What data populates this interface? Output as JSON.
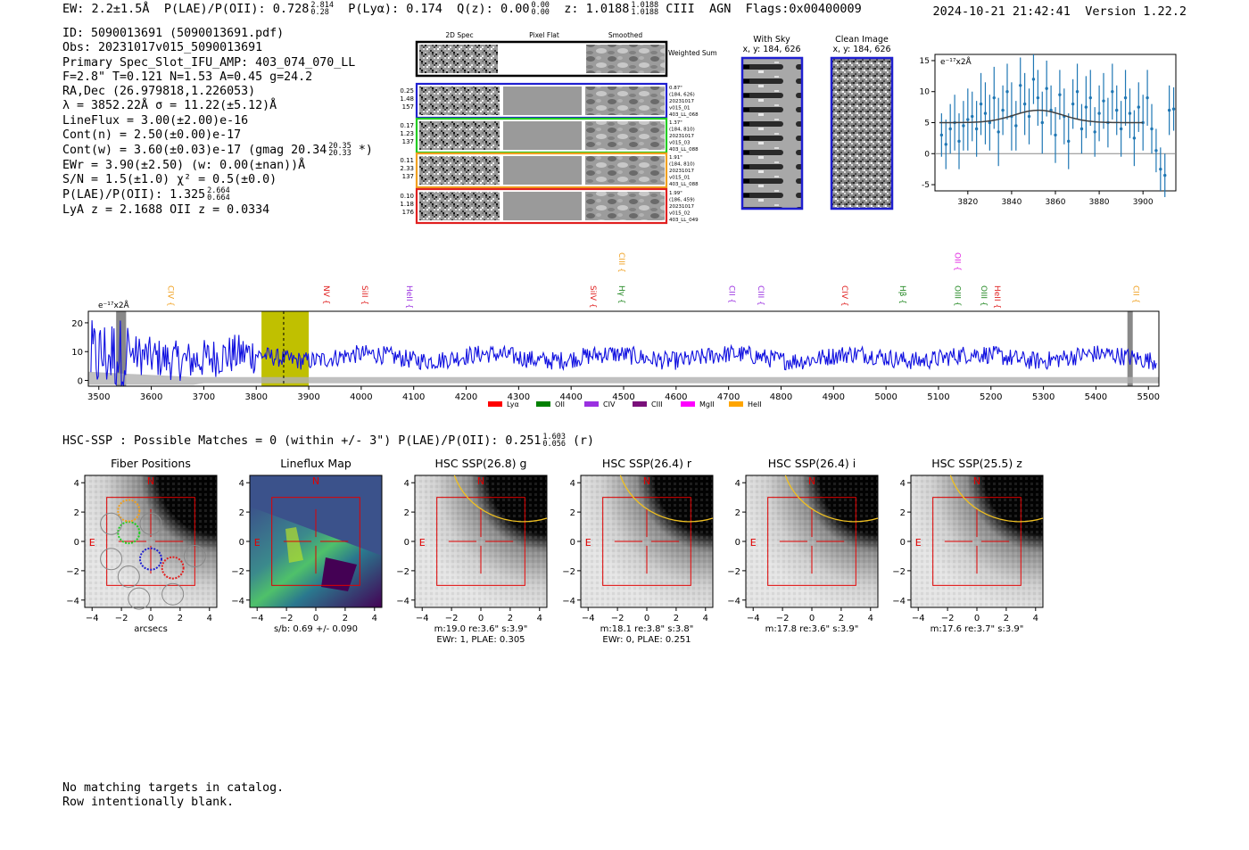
{
  "header": {
    "ew": "EW: 2.2±1.5Å",
    "plae_label": "P(LAE)/P(OII): 0.728",
    "plae_hi": "2.814",
    "plae_lo": "0.28",
    "plya": "P(Lyα): 0.174",
    "qz_label": "Q(z): 0.00",
    "qz_hi": "0.00",
    "qz_lo": "0.00",
    "z_label": "z: 1.0188",
    "z_hi": "1.0188",
    "z_lo": "1.0188",
    "line_id": "CIII",
    "agn": "AGN",
    "flags": "Flags:0x00400009",
    "timestamp": "2024-10-21 21:42:41",
    "version": "Version 1.22.2"
  },
  "info": {
    "id": "ID: 5090013691 (5090013691.pdf)",
    "obs": "Obs: 20231017v015_5090013691",
    "primary": "Primary Spec_Slot_IFU_AMP: 403_074_070_LL",
    "params": "F=2.8\"  T=0.121  N=1.53  A=0.45  g=24.2",
    "radec": "RA,Dec (26.979818,1.226053)",
    "lambda": "λ = 3852.22Å  σ = 11.22(±5.12)Å",
    "lineflux": "LineFlux = 3.00(±2.00)e-16",
    "contn": "Cont(n) = 2.50(±0.00)e-17",
    "contw_label": "Cont(w) = 3.60(±0.03)e-17 (gmag 20.34",
    "contw_hi": "20.35",
    "contw_lo": "20.33",
    "contw_end": "*)",
    "ewr": "EWr = 3.90(±2.50) (w: 0.00(±nan))Å",
    "sn": "S/N = 1.5(±1.0)  χ² = 0.5(±0.0)",
    "plae_label": "P(LAE)/P(OII): 1.325",
    "plae_hi": "2.664",
    "plae_lo": "0.664",
    "lya_z": "LyA z = 2.1688  OII z = 0.0334"
  },
  "spec2d": {
    "col_headers": [
      "2D Spec",
      "Pixel Flat",
      "Smoothed"
    ],
    "weighted_label": "Weighted Sum",
    "rows": [
      {
        "left": [
          "0.25",
          "1.48",
          "157"
        ],
        "right": [
          "0.87\"",
          "(184, 626)",
          "20231017",
          "v015_01",
          "403_LL_068"
        ],
        "color": "#1f1fd0"
      },
      {
        "left": [
          "0.17",
          "1.23",
          "137"
        ],
        "right": [
          "1.37\"",
          "(184, 810)",
          "20231017",
          "v015_03",
          "403_LL_088"
        ],
        "color": "#22cc22"
      },
      {
        "left": [
          "0.11",
          "2.33",
          "137"
        ],
        "right": [
          "1.91\"",
          "(184, 810)",
          "20231017",
          "v015_01",
          "403_LL_088"
        ],
        "color": "#f0a020"
      },
      {
        "left": [
          "0.10",
          "1.18",
          "176"
        ],
        "right": [
          "1.99\"",
          "(186, 459)",
          "20231017",
          "v015_02",
          "403_LL_049"
        ],
        "color": "#e02020"
      }
    ]
  },
  "sky_panels": {
    "with_sky_title": "With Sky",
    "with_sky_coords": "x, y: 184, 626",
    "clean_title": "Clean Image",
    "clean_coords": "x, y: 184, 626"
  },
  "zoom_chart": {
    "type": "scatter",
    "ylabel": "e⁻¹⁷x2Å",
    "x_ticks": [
      3820,
      3840,
      3860,
      3880,
      3900
    ],
    "y_ticks": [
      15,
      10,
      5,
      0,
      -5
    ],
    "xlim": [
      3805,
      3915
    ],
    "ylim": [
      -6,
      16
    ],
    "points": [
      [
        3808,
        3.0,
        3.5
      ],
      [
        3810,
        1.5,
        4.0
      ],
      [
        3812,
        4.0,
        4.0
      ],
      [
        3814,
        5.0,
        4.5
      ],
      [
        3816,
        2.0,
        4.5
      ],
      [
        3818,
        4.5,
        4.0
      ],
      [
        3820,
        5.5,
        5.0
      ],
      [
        3822,
        6.0,
        4.0
      ],
      [
        3824,
        4.0,
        4.5
      ],
      [
        3826,
        8.0,
        5.0
      ],
      [
        3828,
        6.5,
        5.0
      ],
      [
        3830,
        5.0,
        4.5
      ],
      [
        3832,
        9.0,
        5.0
      ],
      [
        3834,
        3.5,
        5.5
      ],
      [
        3836,
        7.0,
        4.0
      ],
      [
        3838,
        10.0,
        4.5
      ],
      [
        3840,
        6.0,
        5.5
      ],
      [
        3842,
        4.5,
        4.0
      ],
      [
        3844,
        11.0,
        4.5
      ],
      [
        3846,
        8.0,
        5.0
      ],
      [
        3848,
        6.0,
        4.5
      ],
      [
        3850,
        12.0,
        4.0
      ],
      [
        3852,
        9.0,
        4.5
      ],
      [
        3854,
        5.0,
        5.0
      ],
      [
        3856,
        10.5,
        4.5
      ],
      [
        3858,
        7.0,
        4.0
      ],
      [
        3860,
        3.0,
        4.5
      ],
      [
        3862,
        9.5,
        4.0
      ],
      [
        3864,
        6.0,
        4.5
      ],
      [
        3866,
        2.0,
        4.5
      ],
      [
        3868,
        8.0,
        4.0
      ],
      [
        3870,
        10.0,
        4.5
      ],
      [
        3872,
        4.0,
        4.0
      ],
      [
        3874,
        7.5,
        5.0
      ],
      [
        3876,
        9.0,
        4.5
      ],
      [
        3878,
        3.5,
        4.0
      ],
      [
        3880,
        6.5,
        4.5
      ],
      [
        3882,
        8.5,
        4.5
      ],
      [
        3884,
        5.0,
        4.0
      ],
      [
        3886,
        10.0,
        4.5
      ],
      [
        3888,
        7.0,
        4.0
      ],
      [
        3890,
        4.0,
        4.5
      ],
      [
        3892,
        9.0,
        4.5
      ],
      [
        3894,
        6.5,
        4.0
      ],
      [
        3896,
        2.5,
        4.5
      ],
      [
        3898,
        7.5,
        4.0
      ],
      [
        3900,
        5.0,
        4.5
      ],
      [
        3902,
        9.0,
        4.5
      ],
      [
        3904,
        4.0,
        4.0
      ],
      [
        3906,
        0.5,
        3.5
      ],
      [
        3908,
        -2.5,
        3.5
      ],
      [
        3910,
        -3.5,
        3.5
      ],
      [
        3912,
        7.0,
        4.0
      ],
      [
        3914,
        7.2,
        3.5
      ]
    ],
    "fit": {
      "baseline": 5.0,
      "amplitude": 2.0,
      "center": 3852.22,
      "sigma": 11.22,
      "x_from": 3807,
      "x_to": 3900
    }
  },
  "chart_data": {
    "type": "line",
    "title": "",
    "ylabel": "e⁻¹⁷x2Å",
    "xlim": [
      3480,
      5520
    ],
    "ylim": [
      -2,
      24
    ],
    "x_ticks": [
      3500,
      3600,
      3700,
      3800,
      3900,
      4000,
      4100,
      4200,
      4300,
      4400,
      4500,
      4600,
      4700,
      4800,
      4900,
      5000,
      5100,
      5200,
      5300,
      5400,
      5500
    ],
    "y_ticks": [
      0,
      10,
      20
    ],
    "line_region": [
      3810,
      3900
    ],
    "line_center": 3852.22,
    "masked_regions": [
      [
        3533,
        3552
      ],
      [
        5460,
        5470
      ]
    ],
    "line_markers": [
      {
        "name": "CIV",
        "x": 3625,
        "color": "#f0a020",
        "row": 0
      },
      {
        "name": "NV",
        "x": 3922,
        "color": "#e02020",
        "row": 0
      },
      {
        "name": "SiII",
        "x": 3995,
        "color": "#e02020",
        "row": 0
      },
      {
        "name": "HeII",
        "x": 4080,
        "color": "#9a30e0",
        "row": 0
      },
      {
        "name": "SiIV",
        "x": 4430,
        "color": "#e02020",
        "row": 0
      },
      {
        "name": "CIII",
        "x": 4485,
        "color": "#f0a020",
        "row": 1
      },
      {
        "name": "Hγ",
        "x": 4485,
        "color": "#228822",
        "row": 0
      },
      {
        "name": "CII",
        "x": 4695,
        "color": "#9a30e0",
        "row": 0
      },
      {
        "name": "CIII",
        "x": 4750,
        "color": "#9a30e0",
        "row": 0
      },
      {
        "name": "CIV",
        "x": 4910,
        "color": "#e02020",
        "row": 0
      },
      {
        "name": "Hβ",
        "x": 5020,
        "color": "#228822",
        "row": 0
      },
      {
        "name": "OII",
        "x": 5125,
        "color": "#e020e0",
        "row": 1
      },
      {
        "name": "OIII",
        "x": 5125,
        "color": "#228822",
        "row": 0
      },
      {
        "name": "OIII",
        "x": 5175,
        "color": "#228822",
        "row": 0
      },
      {
        "name": "HeII",
        "x": 5200,
        "color": "#e02020",
        "row": 0
      },
      {
        "name": "CII",
        "x": 5465,
        "color": "#f0a020",
        "row": 0
      }
    ],
    "legend": [
      {
        "name": "Lyα",
        "color": "#ff0000"
      },
      {
        "name": "OII",
        "color": "#008000"
      },
      {
        "name": "CIV",
        "color": "#9a30e0"
      },
      {
        "name": "CIII",
        "color": "#7a107a"
      },
      {
        "name": "MgII",
        "color": "#ff00ff"
      },
      {
        "name": "HeII",
        "color": "#ffa500"
      }
    ]
  },
  "hsc_summary": {
    "label": "HSC-SSP : Possible Matches = 0 (within +/- 3\")  P(LAE)/P(OII): 0.251",
    "hi": "1.603",
    "lo": "0.056",
    "band": "(r)"
  },
  "cutouts": {
    "axis_ticks_x": [
      -4,
      -2,
      0,
      2,
      4
    ],
    "axis_ticks_y": [
      4,
      2,
      0,
      -2,
      -4
    ],
    "north": "N",
    "east": "E",
    "panels": [
      {
        "title": "Fiber Positions",
        "caption1": "arcsecs",
        "caption2": ""
      },
      {
        "title": "Lineflux Map",
        "caption1": "s/b: 0.69 +/- 0.090",
        "caption2": ""
      },
      {
        "title": "HSC SSP(26.8) g",
        "caption1": "m:19.0  re:3.6\"  s:3.9\"",
        "caption2": "EWr: 1, PLAE: 0.305"
      },
      {
        "title": "HSC SSP(26.4) r",
        "caption1": "m:18.1  re:3.8\"  s:3.8\"",
        "caption2": "EWr: 0, PLAE: 0.251"
      },
      {
        "title": "HSC SSP(26.4) i",
        "caption1": "m:17.8  re:3.6\"  s:3.9\"",
        "caption2": ""
      },
      {
        "title": "HSC SSP(25.5) z",
        "caption1": "m:17.6  re:3.7\"  s:3.9\"",
        "caption2": ""
      }
    ]
  },
  "footer": {
    "line1": "No matching targets in catalog.",
    "line2": "Row intentionally blank."
  }
}
